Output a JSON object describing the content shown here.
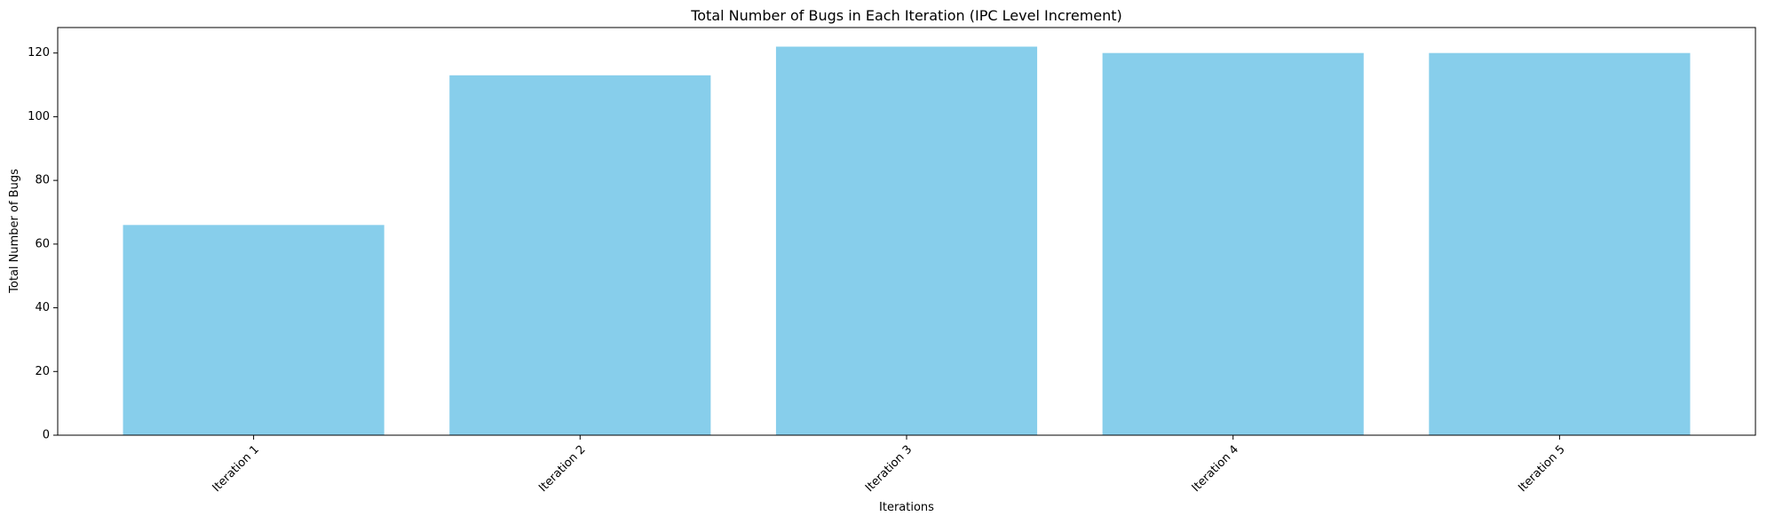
{
  "chart_data": {
    "type": "bar",
    "title": "Total Number of Bugs in Each Iteration (IPC Level Increment)",
    "xlabel": "Iterations",
    "ylabel": "Total Number of Bugs",
    "categories": [
      "Iteration 1",
      "Iteration 2",
      "Iteration 3",
      "Iteration 4",
      "Iteration 5"
    ],
    "values": [
      66,
      113,
      122,
      120,
      120
    ],
    "ylim": [
      0,
      128
    ],
    "yticks": [
      0,
      20,
      40,
      60,
      80,
      100,
      120
    ],
    "bar_color": "#87ceeb",
    "grid": false,
    "legend": "none"
  }
}
